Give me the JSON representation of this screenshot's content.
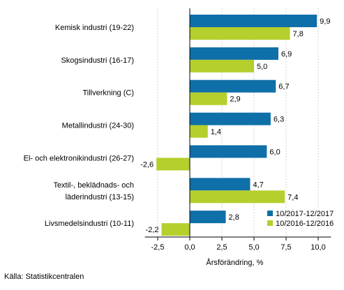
{
  "chart_data": {
    "type": "bar",
    "orientation": "horizontal",
    "categories": [
      [
        "Kemisk industri (19-22)"
      ],
      [
        "Skogsindustri (16-17)"
      ],
      [
        "Tillverkning (C)"
      ],
      [
        "Metallindustri (24-30)"
      ],
      [
        "El- och elektronikindustri (26-27)"
      ],
      [
        "Textil-, beklädnads- och",
        "läderindustri (13-15)"
      ],
      [
        "Livsmedelsindustri (10-11)"
      ]
    ],
    "series": [
      {
        "name": "10/2017-12/2017",
        "color": "#0f6fa8",
        "values": [
          9.9,
          6.9,
          6.7,
          6.3,
          6.0,
          4.7,
          2.8
        ],
        "labels": [
          "9,9",
          "6,9",
          "6,7",
          "6,3",
          "6,0",
          "4,7",
          "2,8"
        ]
      },
      {
        "name": "10/2016-12/2016",
        "color": "#b5cf2c",
        "values": [
          7.8,
          5.0,
          2.9,
          1.4,
          -2.6,
          7.4,
          -2.2
        ],
        "labels": [
          "7,8",
          "5,0",
          "2,9",
          "1,4",
          "-2,6",
          "7,4",
          "-2,2"
        ]
      }
    ],
    "xlim": [
      -3.5,
      11.0
    ],
    "xticks": [
      -2.5,
      0.0,
      2.5,
      5.0,
      7.5,
      10.0
    ],
    "xtick_labels": [
      "-2,5",
      "0,0",
      "2,5",
      "5,0",
      "7,5",
      "10,0"
    ],
    "xlabel": "Årsförändring, %",
    "grid": "vertical",
    "legend": "bottom-right"
  },
  "source": "Källa: Statistikcentralen"
}
